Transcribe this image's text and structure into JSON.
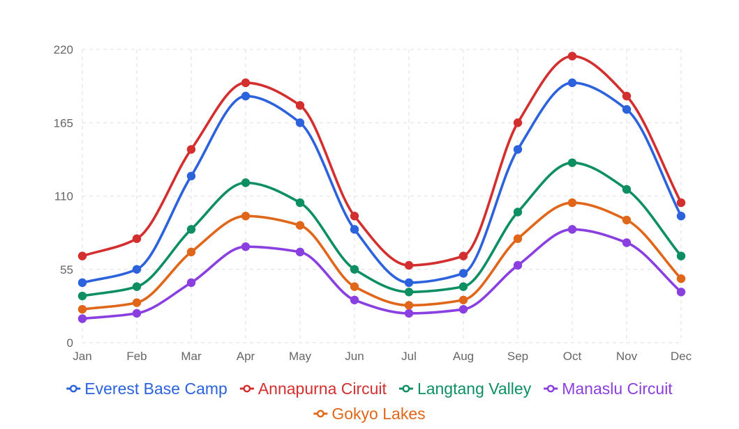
{
  "chart_data": {
    "type": "line",
    "categories": [
      "Jan",
      "Feb",
      "Mar",
      "Apr",
      "May",
      "Jun",
      "Jul",
      "Aug",
      "Sep",
      "Oct",
      "Nov",
      "Dec"
    ],
    "ylim": [
      0,
      220
    ],
    "yticks": [
      0,
      55,
      110,
      165,
      220
    ],
    "grid": true,
    "smooth": true,
    "legend_position": "bottom",
    "series": [
      {
        "name": "Everest Base Camp",
        "color": "#2c62dc",
        "values": [
          45,
          55,
          125,
          185,
          165,
          85,
          45,
          52,
          145,
          195,
          175,
          95
        ]
      },
      {
        "name": "Annapurna Circuit",
        "color": "#d32f2f",
        "values": [
          65,
          78,
          145,
          195,
          178,
          95,
          58,
          65,
          165,
          215,
          185,
          105
        ]
      },
      {
        "name": "Langtang Valley",
        "color": "#0e8f62",
        "values": [
          35,
          42,
          85,
          120,
          105,
          55,
          38,
          42,
          98,
          135,
          115,
          65
        ]
      },
      {
        "name": "Manaslu Circuit",
        "color": "#8a3fe0",
        "values": [
          18,
          22,
          45,
          72,
          68,
          32,
          22,
          25,
          58,
          85,
          75,
          38
        ]
      },
      {
        "name": "Gokyo Lakes",
        "color": "#e0661a",
        "values": [
          25,
          30,
          68,
          95,
          88,
          42,
          28,
          32,
          78,
          105,
          92,
          48
        ]
      }
    ]
  }
}
